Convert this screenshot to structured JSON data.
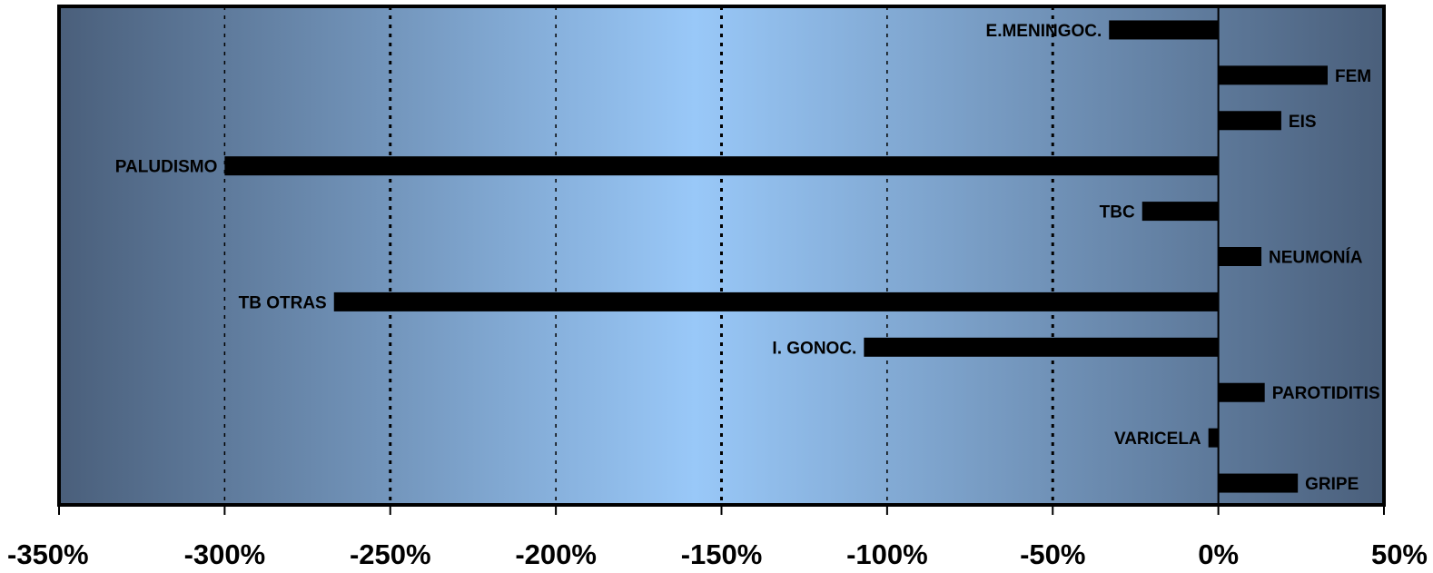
{
  "chart_data": {
    "type": "bar",
    "orientation": "horizontal",
    "title": "",
    "xlabel": "",
    "ylabel": "",
    "xlim": [
      -350,
      50
    ],
    "x_ticks": [
      -350,
      -300,
      -250,
      -200,
      -150,
      -100,
      -50,
      0,
      50
    ],
    "x_tick_labels": [
      "-350%",
      "-300%",
      "-250%",
      "-200%",
      "-150%",
      "-100%",
      "-50%",
      "0%",
      "50%"
    ],
    "grid": "vertical dotted",
    "legend": "none",
    "categories": [
      "E.MENINGOC.",
      "FEM",
      "EIS",
      "PALUDISMO",
      "TBC",
      "NEUMONÍA",
      "TB OTRAS",
      "I. GONOC.",
      "PAROTIDITIS",
      "VARICELA",
      "GRIPE"
    ],
    "values": [
      -33,
      33,
      19,
      -300,
      -23,
      13,
      -267,
      -107,
      14,
      -3,
      24
    ],
    "unit": "%"
  },
  "colors": {
    "bar": "#000000",
    "background_edge": "#4a5f7b",
    "background_center": "#99c8f8",
    "axis": "#000000"
  }
}
